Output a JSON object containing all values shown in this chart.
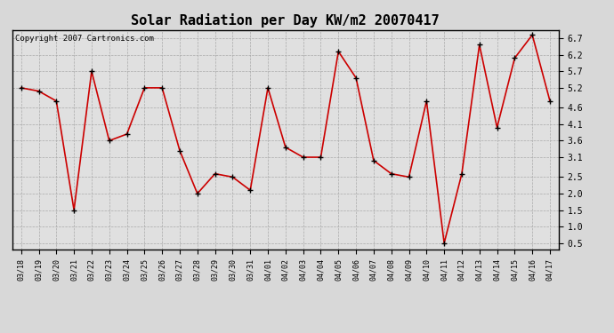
{
  "title": "Solar Radiation per Day KW/m2 20070417",
  "copyright": "Copyright 2007 Cartronics.com",
  "dates": [
    "03/18",
    "03/19",
    "03/20",
    "03/21",
    "03/22",
    "03/23",
    "03/24",
    "03/25",
    "03/26",
    "03/27",
    "03/28",
    "03/29",
    "03/30",
    "03/31",
    "04/01",
    "04/02",
    "04/03",
    "04/04",
    "04/05",
    "04/06",
    "04/07",
    "04/08",
    "04/09",
    "04/10",
    "04/11",
    "04/12",
    "04/13",
    "04/14",
    "04/15",
    "04/16",
    "04/17"
  ],
  "values": [
    5.2,
    5.1,
    4.8,
    1.5,
    5.7,
    3.6,
    3.8,
    5.2,
    5.2,
    3.3,
    2.0,
    2.6,
    2.5,
    2.1,
    5.2,
    3.4,
    3.1,
    3.1,
    6.3,
    5.5,
    3.0,
    2.6,
    2.5,
    4.8,
    0.5,
    2.6,
    6.5,
    4.0,
    6.1,
    6.8,
    4.8
  ],
  "line_color": "#cc0000",
  "marker": "+",
  "marker_color": "#000000",
  "marker_size": 5,
  "line_width": 1.2,
  "ylim": [
    0.3,
    6.95
  ],
  "yticks": [
    0.5,
    1.0,
    1.5,
    2.0,
    2.5,
    3.1,
    3.6,
    4.1,
    4.6,
    5.2,
    5.7,
    6.2,
    6.7
  ],
  "bg_color": "#d8d8d8",
  "plot_bg_color": "#e0e0e0",
  "title_fontsize": 11,
  "copyright_fontsize": 6.5,
  "tick_fontsize": 6,
  "ytick_fontsize": 7
}
